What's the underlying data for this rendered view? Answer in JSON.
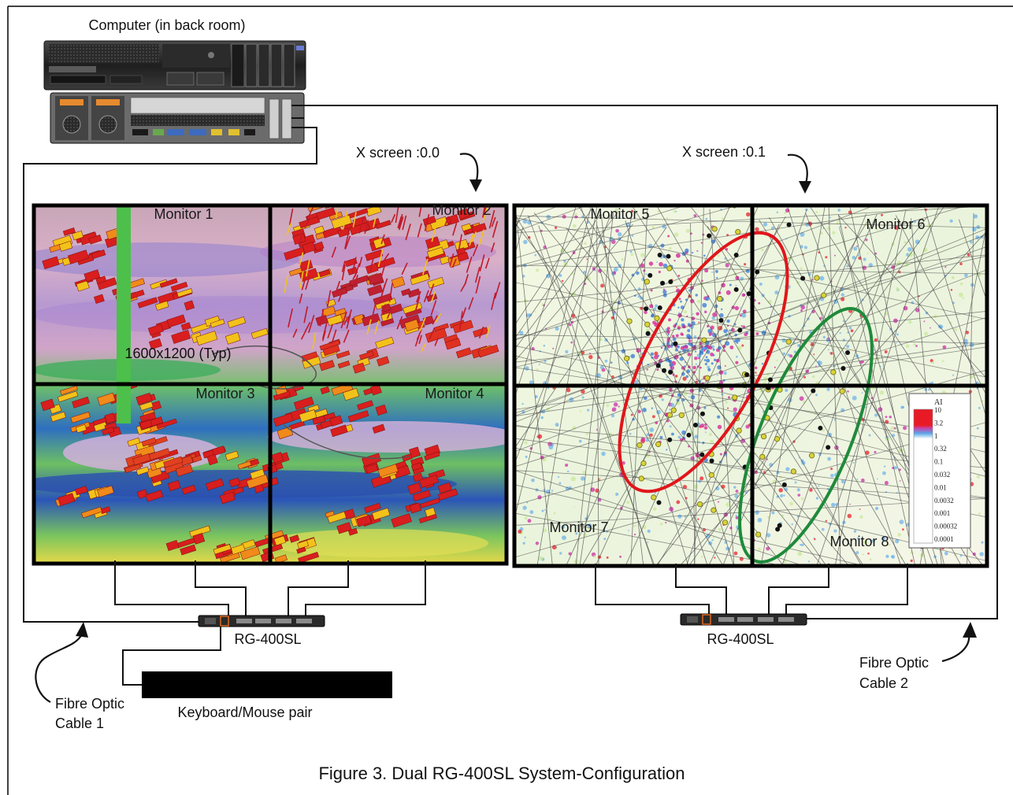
{
  "computer_label": "Computer (in back room)",
  "x_screens": [
    {
      "label": "X screen :0.0"
    },
    {
      "label": "X screen :0.1"
    }
  ],
  "monitors": [
    {
      "label": "Monitor 1",
      "theme": "seismic"
    },
    {
      "label": "Monitor 2",
      "theme": "seismic"
    },
    {
      "label": "Monitor 3",
      "theme": "seismic"
    },
    {
      "label": "Monitor 4",
      "theme": "seismic"
    },
    {
      "label": "Monitor 5",
      "theme": "map"
    },
    {
      "label": "Monitor 6",
      "theme": "map"
    },
    {
      "label": "Monitor 7",
      "theme": "map"
    },
    {
      "label": "Monitor 8",
      "theme": "map"
    }
  ],
  "resolution_label": "1600x1200 (Typ)",
  "switches": [
    {
      "label": "RG-400SL"
    },
    {
      "label": "RG-400SL"
    }
  ],
  "keyboard_label": "Keyboard/Mouse pair",
  "cables": [
    {
      "line1": "Fibre Optic",
      "line2": "Cable 1"
    },
    {
      "line1": "Fibre Optic",
      "line2": "Cable 2"
    }
  ],
  "legend": {
    "title": "AI",
    "ticks": [
      "10",
      "3.2",
      "1",
      "0.32",
      "0.1",
      "0.032",
      "0.01",
      "0.0032",
      "0.001",
      "0.00032",
      "0.0001"
    ]
  },
  "figure_caption": "Figure 3.  Dual RG-400SL System-Configuration",
  "colors": {
    "frame": "#000000",
    "red_ellipse": "#e0161b",
    "green_ellipse": "#1f8a3b",
    "well": "#4cc04a"
  }
}
